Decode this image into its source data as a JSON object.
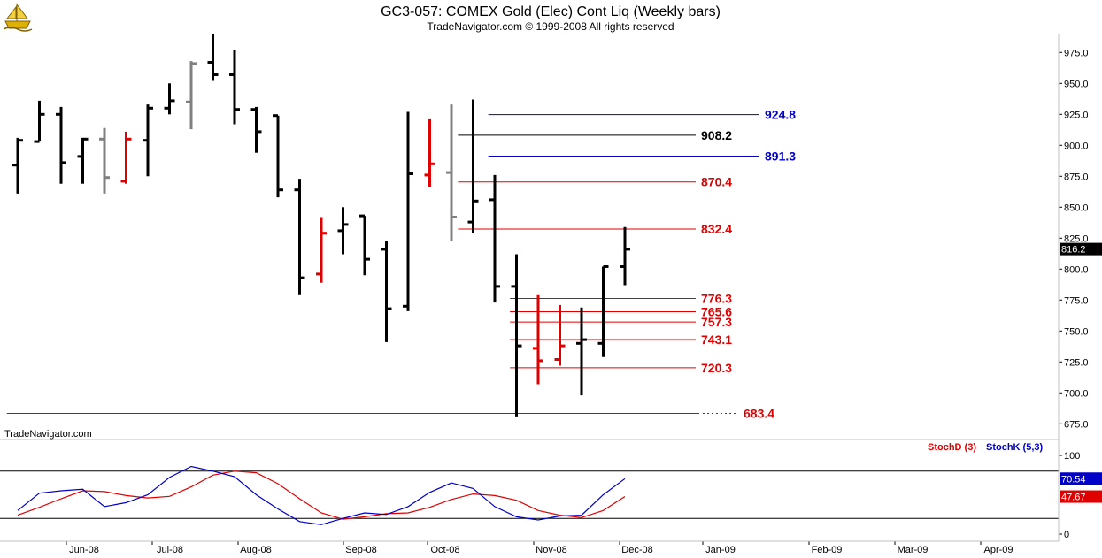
{
  "header": {
    "title": "GC3-057:  COMEX Gold (Elec) Cont Liq  (Weekly bars)",
    "subtitle": "TradeNavigator.com © 1999-2008 All rights reserved",
    "watermark": "TradeNavigator.com",
    "logo_icon": "trade-navigator-ship-icon"
  },
  "colors": {
    "up_bar": "#000000",
    "down_bar": "#e00000",
    "grey_bar": "#808080",
    "blue_level": "#0000c8",
    "red_level": "#e00000",
    "black_level": "#000000",
    "stoch_d": "#e00000",
    "stoch_k": "#0000c8",
    "axis": "#c0c0c0"
  },
  "chart_data": [
    {
      "type": "ohlc",
      "title": "GC3-057:  COMEX Gold (Elec) Cont Liq  (Weekly bars)",
      "ylim": [
        665,
        990
      ],
      "yticks": [
        675.0,
        700.0,
        725.0,
        750.0,
        775.0,
        800.0,
        825.0,
        850.0,
        875.0,
        900.0,
        925.0,
        950.0,
        975.0
      ],
      "ytick_labels": [
        "675.0",
        "700.0",
        "725.0",
        "750.0",
        "775.0",
        "800.0",
        "825.0",
        "850.0",
        "875.0",
        "900.0",
        "925.0",
        "950.0",
        "975.0"
      ],
      "last_price_label": "816.2",
      "xticks": [
        "Jun-08",
        "Jul-08",
        "Aug-08",
        "Sep-08",
        "Oct-08",
        "Nov-08",
        "Dec-08",
        "Jan-09",
        "Feb-09",
        "Mar-09",
        "Apr-09"
      ],
      "bars": [
        {
          "o": 884,
          "h": 906,
          "l": 861,
          "c": 904,
          "color": "up"
        },
        {
          "o": 903,
          "h": 936,
          "l": 903,
          "c": 925,
          "color": "up"
        },
        {
          "o": 925,
          "h": 931,
          "l": 869,
          "c": 886,
          "color": "up"
        },
        {
          "o": 891,
          "h": 906,
          "l": 869,
          "c": 905,
          "color": "up"
        },
        {
          "o": 905,
          "h": 914,
          "l": 861,
          "c": 874,
          "color": "grey"
        },
        {
          "o": 871,
          "h": 911,
          "l": 869,
          "c": 905,
          "color": "down"
        },
        {
          "o": 904,
          "h": 933,
          "l": 875,
          "c": 930,
          "color": "up"
        },
        {
          "o": 930,
          "h": 950,
          "l": 925,
          "c": 936,
          "color": "up"
        },
        {
          "o": 935,
          "h": 968,
          "l": 913,
          "c": 966,
          "color": "grey"
        },
        {
          "o": 967,
          "h": 990,
          "l": 952,
          "c": 957,
          "color": "up"
        },
        {
          "o": 957,
          "h": 977,
          "l": 917,
          "c": 929,
          "color": "up"
        },
        {
          "o": 929,
          "h": 931,
          "l": 894,
          "c": 911,
          "color": "up"
        },
        {
          "o": 924,
          "h": 924,
          "l": 858,
          "c": 864,
          "color": "up"
        },
        {
          "o": 864,
          "h": 873,
          "l": 779,
          "c": 793,
          "color": "up"
        },
        {
          "o": 796,
          "h": 842,
          "l": 789,
          "c": 829,
          "color": "down"
        },
        {
          "o": 831,
          "h": 850,
          "l": 812,
          "c": 836,
          "color": "up"
        },
        {
          "o": 843,
          "h": 843,
          "l": 795,
          "c": 808,
          "color": "up"
        },
        {
          "o": 816,
          "h": 823,
          "l": 741,
          "c": 768,
          "color": "up"
        },
        {
          "o": 770,
          "h": 927,
          "l": 766,
          "c": 877,
          "color": "up"
        },
        {
          "o": 876,
          "h": 921,
          "l": 866,
          "c": 885,
          "color": "down"
        },
        {
          "o": 878,
          "h": 933,
          "l": 823,
          "c": 842,
          "color": "grey"
        },
        {
          "o": 838,
          "h": 937,
          "l": 829,
          "c": 855,
          "color": "up"
        },
        {
          "o": 856,
          "h": 876,
          "l": 773,
          "c": 786,
          "color": "up"
        },
        {
          "o": 786,
          "h": 812,
          "l": 681,
          "c": 738,
          "color": "up"
        },
        {
          "o": 736,
          "h": 779,
          "l": 707,
          "c": 726,
          "color": "down"
        },
        {
          "o": 727,
          "h": 771,
          "l": 722,
          "c": 738,
          "color": "down"
        },
        {
          "o": 740,
          "h": 769,
          "l": 698,
          "c": 743,
          "color": "up"
        },
        {
          "o": 740,
          "h": 802,
          "l": 729,
          "c": 802,
          "color": "up"
        },
        {
          "o": 802,
          "h": 834,
          "l": 787,
          "c": 816,
          "color": "up"
        }
      ],
      "levels": [
        {
          "value": 924.8,
          "label": "924.8",
          "color": "blue",
          "from_bar": 21.7
        },
        {
          "value": 908.2,
          "label": "908.2",
          "color": "black",
          "from_bar": 20.3
        },
        {
          "value": 891.3,
          "label": "891.3",
          "color": "blue",
          "from_bar": 21.7
        },
        {
          "value": 870.4,
          "label": "870.4",
          "color": "red",
          "from_bar": 20.3
        },
        {
          "value": 832.4,
          "label": "832.4",
          "color": "red",
          "from_bar": 20.3
        },
        {
          "value": 776.3,
          "label": "776.3",
          "color": "red",
          "from_bar": 22.7
        },
        {
          "value": 765.6,
          "label": "765.6",
          "color": "red",
          "from_bar": 22.7
        },
        {
          "value": 757.3,
          "label": "757.3",
          "color": "red",
          "from_bar": 22.7
        },
        {
          "value": 743.1,
          "label": "743.1",
          "color": "red",
          "from_bar": 22.7
        },
        {
          "value": 720.3,
          "label": "720.3",
          "color": "red",
          "from_bar": 22.7
        },
        {
          "value": 683.4,
          "label": "683.4",
          "color": "red",
          "from_bar": -0.5
        }
      ]
    },
    {
      "type": "line",
      "ylim": [
        0,
        100
      ],
      "yticks": [
        0,
        100
      ],
      "ytick_labels": [
        "0",
        "100"
      ],
      "reference_lines": [
        80,
        20
      ],
      "series": [
        {
          "name": "StochD (3)",
          "color": "red",
          "last_label": "47.67",
          "values": [
            24,
            34,
            45,
            55,
            54,
            49,
            46,
            48,
            60,
            75,
            80,
            78,
            64,
            45,
            27,
            19,
            22,
            26,
            27,
            34,
            44,
            51,
            49,
            43,
            30,
            24,
            21,
            30,
            47.7
          ]
        },
        {
          "name": "StochK (5,3)",
          "color": "blue",
          "last_label": "70.54",
          "values": [
            30,
            52,
            55,
            57,
            35,
            40,
            50,
            72,
            86,
            80,
            73,
            50,
            32,
            16,
            12,
            20,
            27,
            25,
            35,
            53,
            65,
            58,
            35,
            22,
            18,
            23,
            24,
            50,
            70.5
          ]
        }
      ]
    }
  ]
}
